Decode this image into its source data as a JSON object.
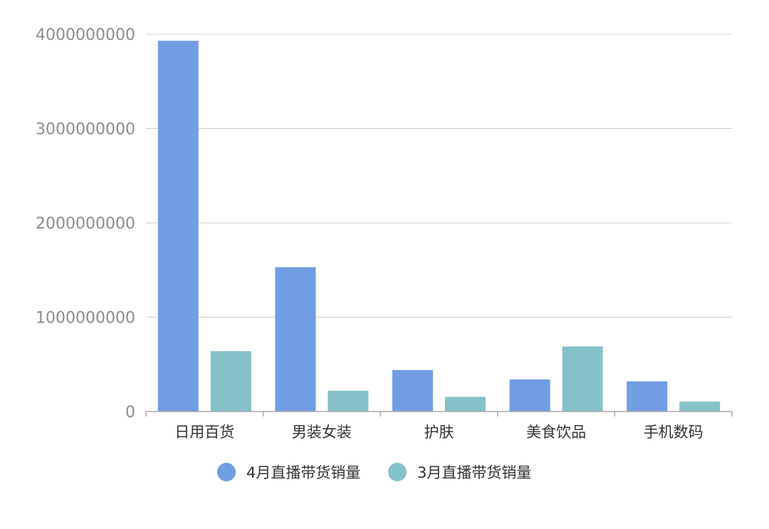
{
  "chart_data": {
    "type": "bar",
    "title": "",
    "xlabel": "",
    "ylabel": "",
    "categories": [
      "日用百货",
      "男装女装",
      "护肤",
      "美食饮品",
      "手机数码"
    ],
    "series": [
      {
        "name": "4月直播带货销量",
        "color": "#719de2",
        "values": [
          3930000000,
          1530000000,
          440000000,
          340000000,
          320000000
        ]
      },
      {
        "name": "3月直播带货销量",
        "color": "#85c1c8",
        "values": [
          640000000,
          220000000,
          155000000,
          690000000,
          105000000
        ]
      }
    ],
    "ylim": [
      0,
      4000000000
    ],
    "yticks": [
      "0",
      "1000000000",
      "2000000000",
      "3000000000",
      "4000000000"
    ],
    "grid": true,
    "legend_position": "bottom-center"
  },
  "colors": {
    "grid": "#cccccc",
    "axis": "#aaaaaa",
    "tick_text": "#8c8c8c",
    "category_text": "#333333"
  }
}
